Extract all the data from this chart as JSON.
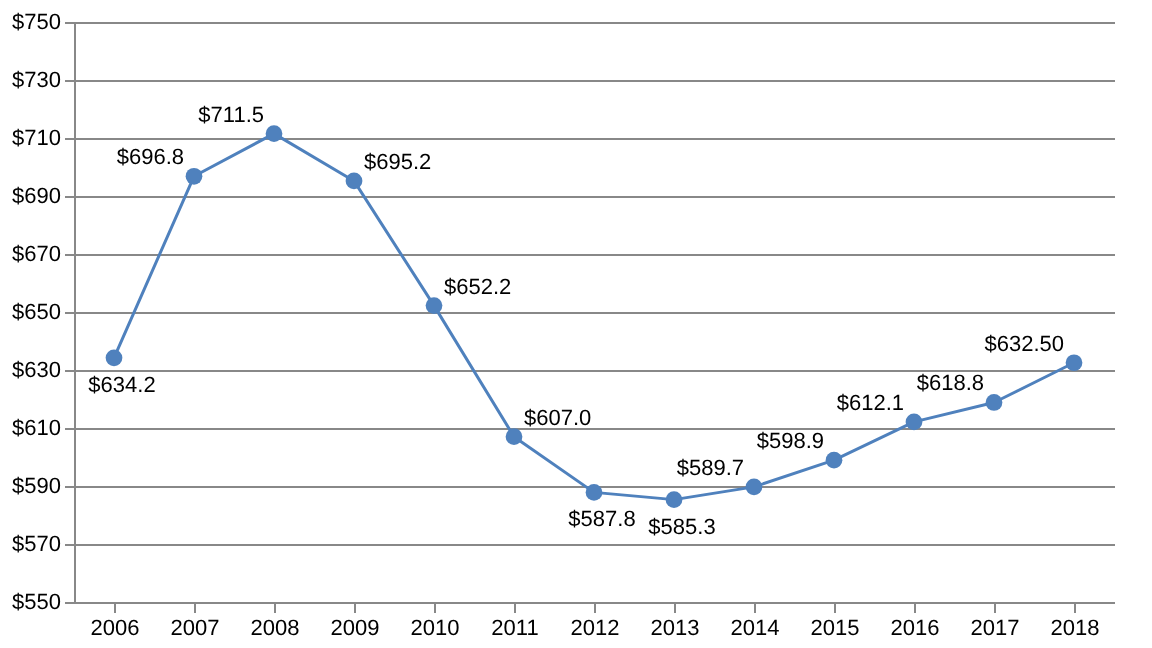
{
  "chart_data": {
    "type": "line",
    "categories": [
      "2006",
      "2007",
      "2008",
      "2009",
      "2010",
      "2011",
      "2012",
      "2013",
      "2014",
      "2015",
      "2016",
      "2017",
      "2018"
    ],
    "series": [
      {
        "color": "#4f81bd",
        "values": [
          634.2,
          696.8,
          711.5,
          695.2,
          652.2,
          607.0,
          587.8,
          585.3,
          589.7,
          598.9,
          612.1,
          618.8,
          632.5
        ],
        "value_labels": [
          "$634.2",
          "$696.8",
          "$711.5",
          "$695.2",
          "$652.2",
          "$607.0",
          "$587.8",
          "$585.3",
          "$589.7",
          "$598.9",
          "$612.1",
          "$618.8",
          "$632.50"
        ]
      }
    ],
    "ylim": [
      550,
      750
    ],
    "yticks": [
      {
        "value": 550,
        "label": "$550"
      },
      {
        "value": 570,
        "label": "$570"
      },
      {
        "value": 590,
        "label": "$590"
      },
      {
        "value": 610,
        "label": "$610"
      },
      {
        "value": 630,
        "label": "$630"
      },
      {
        "value": 650,
        "label": "$650"
      },
      {
        "value": 670,
        "label": "$670"
      },
      {
        "value": 690,
        "label": "$690"
      },
      {
        "value": 710,
        "label": "$710"
      },
      {
        "value": 730,
        "label": "$730"
      },
      {
        "value": 750,
        "label": "$750"
      }
    ],
    "grid": "y",
    "marker": "circle",
    "line_style": "solid"
  }
}
